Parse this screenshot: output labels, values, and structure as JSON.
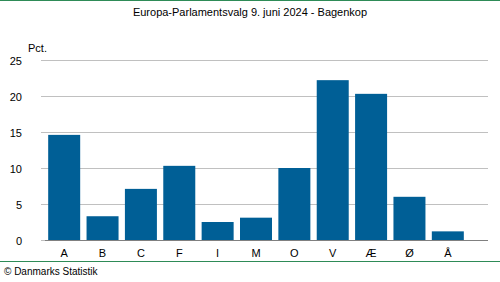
{
  "chart_data": {
    "type": "bar",
    "title": "Europa-Parlamentsvalg 9. juni 2024 - Bagenkop",
    "y_label": "Pct.",
    "annotations": [
      "© Danmarks Statistik"
    ],
    "categories": [
      "A",
      "B",
      "C",
      "F",
      "I",
      "M",
      "O",
      "V",
      "Æ",
      "Ø",
      "Å"
    ],
    "values": [
      14.6,
      3.3,
      7.1,
      10.3,
      2.5,
      3.1,
      10.0,
      22.2,
      20.3,
      6.0,
      1.2
    ],
    "color": "#005f96",
    "ylim": [
      0,
      25
    ],
    "yticks": [
      0,
      5,
      10,
      15,
      20,
      25
    ],
    "grid": true
  }
}
